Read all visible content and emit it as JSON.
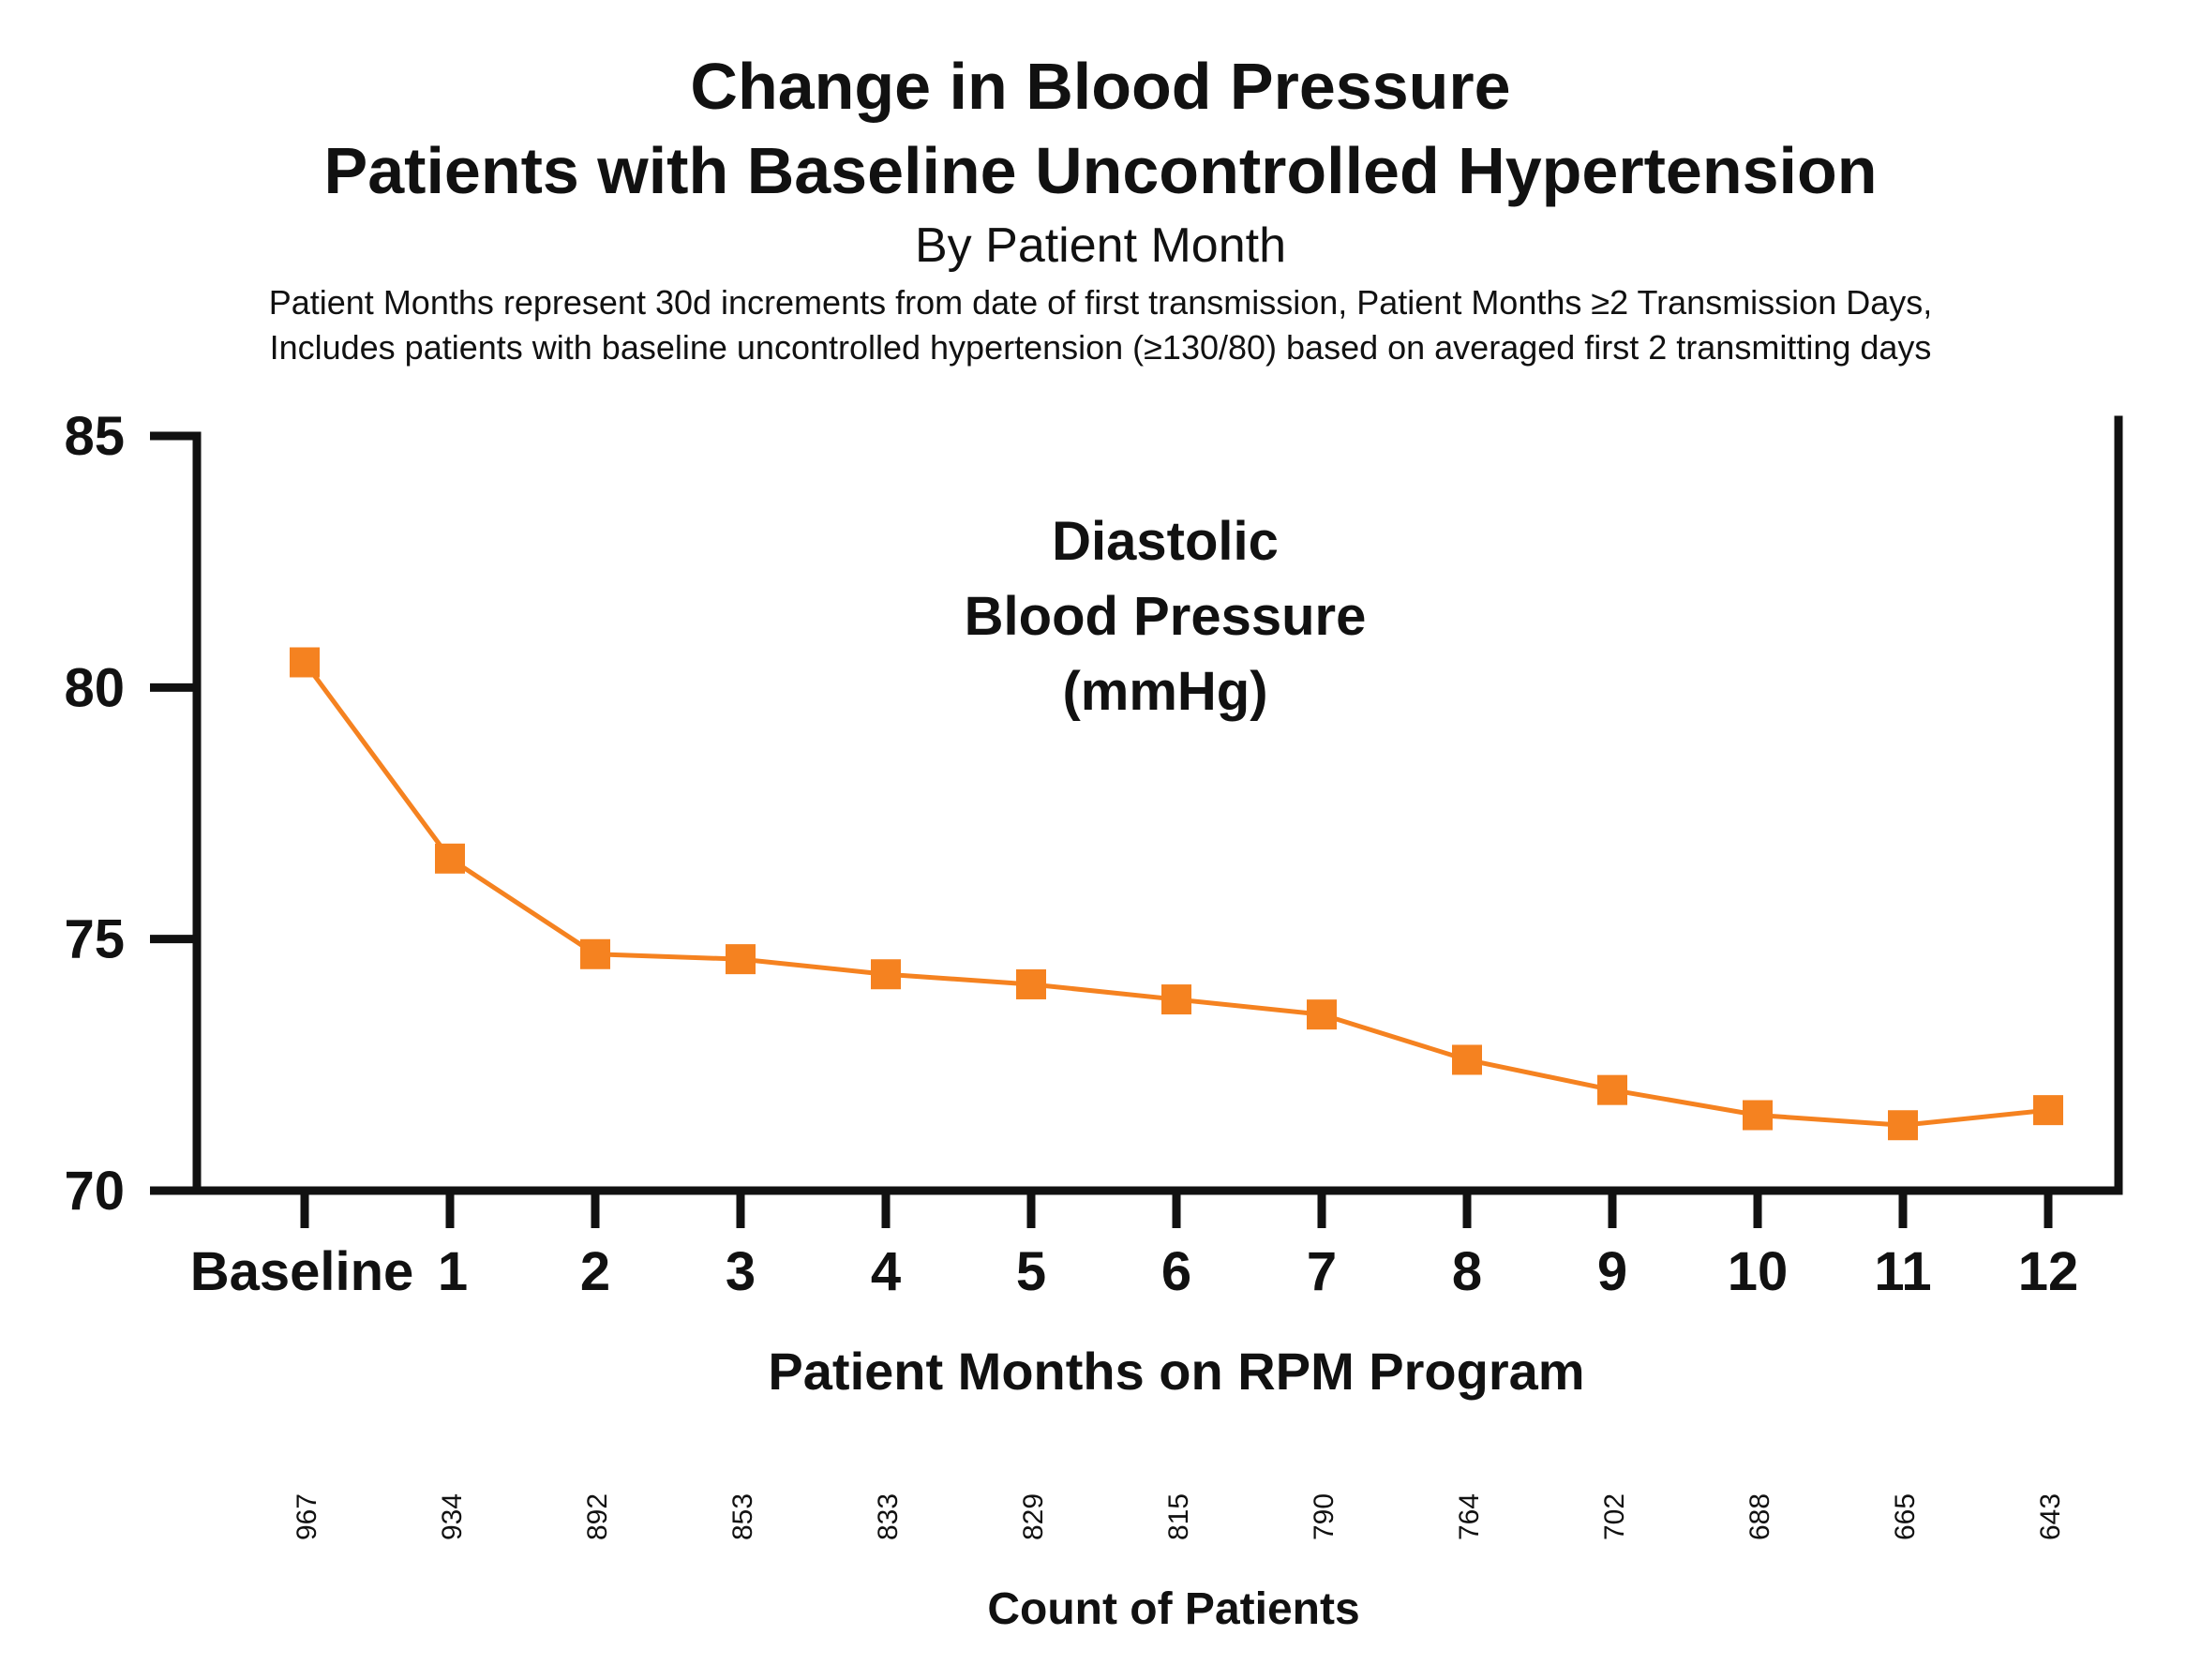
{
  "header": {
    "title_line1": "Change in Blood Pressure",
    "title_line2": "Patients with Baseline Uncontrolled Hypertension",
    "subtitle": "By Patient Month",
    "note_line1": "Patient Months represent 30d increments from date of first transmission,  Patient Months ≥2 Transmission Days,",
    "note_line2": "Includes patients with baseline uncontrolled hypertension (≥130/80) based on averaged first 2 transmitting days"
  },
  "chart_data": {
    "type": "line",
    "title": "Change in Blood Pressure Patients with Baseline Uncontrolled Hypertension",
    "subtitle": "By Patient Month",
    "annotation_lines": [
      "Diastolic",
      "Blood Pressure",
      "(mmHg)"
    ],
    "xlabel": "Patient Months on RPM Program",
    "ylabel": "",
    "categories": [
      "Baseline",
      "1",
      "2",
      "3",
      "4",
      "5",
      "6",
      "7",
      "8",
      "9",
      "10",
      "11",
      "12"
    ],
    "series": [
      {
        "values": [
          80.5,
          76.6,
          74.7,
          74.6,
          74.3,
          74.1,
          73.8,
          73.5,
          72.6,
          72.0,
          71.5,
          71.3,
          71.6
        ]
      }
    ],
    "ylim": [
      70,
      85
    ],
    "yticks": [
      "70",
      "75",
      "80",
      "85"
    ],
    "grid": false,
    "legend": "none",
    "counts_label": "Count of Patients",
    "counts": [
      "967",
      "934",
      "892",
      "853",
      "833",
      "829",
      "815",
      "790",
      "764",
      "702",
      "688",
      "665",
      "643"
    ],
    "line_color": "#f58220",
    "marker_color": "#f58220",
    "marker_shape": "square"
  }
}
